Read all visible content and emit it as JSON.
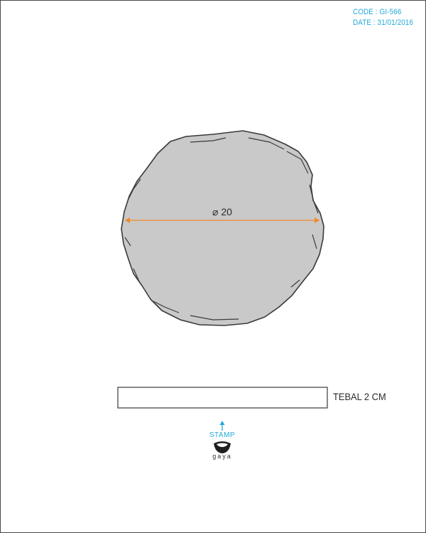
{
  "header": {
    "code": "CODE : GI-566",
    "date": "DATE : 31/01/2016"
  },
  "drawing": {
    "diameter_label": "⌀ 20",
    "thickness_label": "TEBAL 2 CM",
    "stamp_label": "STAMP",
    "brand": "gaya"
  },
  "colors": {
    "accent": "#21a9d9",
    "dimension_line": "#f08a2c",
    "stone_fill": "#c9c9c9",
    "outline": "#3a3a3a"
  },
  "icons": {
    "stamp_arrow": "arrow-up-icon",
    "brand_logo": "gaya-logo-icon"
  }
}
